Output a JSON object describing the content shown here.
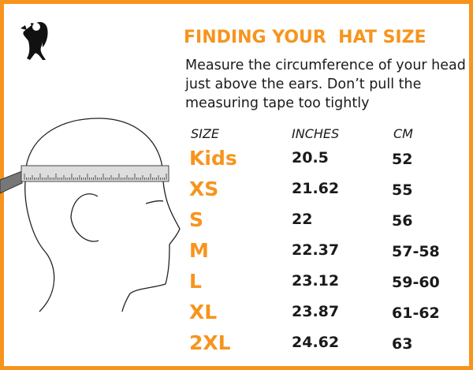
{
  "title": "FINDING YOUR  HAT SIZE",
  "description": "Measure the circumference of your head just above the ears. Don’t pull the measuring tape too tightly",
  "table": {
    "headers": [
      "SIZE",
      "INCHES",
      "CM"
    ],
    "rows": [
      {
        "size": "Kids",
        "inches": "20.5",
        "cm": "52"
      },
      {
        "size": "XS",
        "inches": "21.62",
        "cm": "55"
      },
      {
        "size": "S",
        "inches": "22",
        "cm": "56"
      },
      {
        "size": "M",
        "inches": "22.37",
        "cm": "57-58"
      },
      {
        "size": "L",
        "inches": "23.12",
        "cm": "59-60"
      },
      {
        "size": "XL",
        "inches": "23.87",
        "cm": "61-62"
      },
      {
        "size": "2XL",
        "inches": "24.62",
        "cm": "63"
      }
    ]
  },
  "colors": {
    "accent": "#F7941D",
    "text": "#1a1a1a"
  },
  "icons": [
    "skunk-logo",
    "head-measuring-illustration"
  ]
}
